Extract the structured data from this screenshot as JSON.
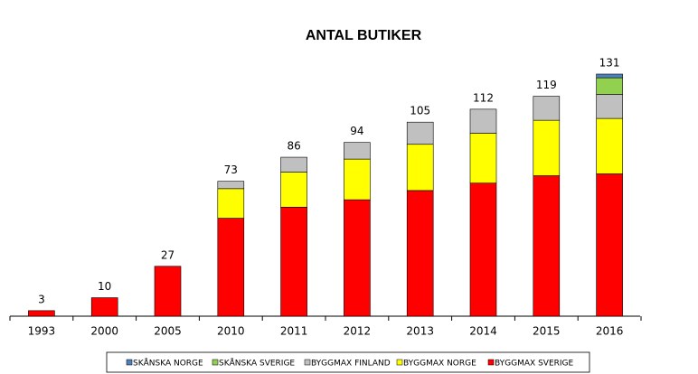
{
  "chart_data": {
    "type": "stacked_bar",
    "title": "ANTAL BUTIKER",
    "categories": [
      "1993",
      "2000",
      "2005",
      "2010",
      "2011",
      "2012",
      "2013",
      "2014",
      "2015",
      "2016"
    ],
    "totals": [
      3,
      10,
      27,
      73,
      86,
      94,
      105,
      112,
      119,
      131
    ],
    "series": [
      {
        "name": "SKÅNSKA NORGE",
        "color": "#4f81bd",
        "values": [
          null,
          null,
          null,
          null,
          null,
          null,
          null,
          null,
          null,
          2
        ]
      },
      {
        "name": "SKÅNSKA SVERIGE",
        "color": "#92d050",
        "values": [
          null,
          null,
          null,
          null,
          null,
          null,
          null,
          null,
          null,
          9
        ]
      },
      {
        "name": "BYGGMAX FINLAND",
        "color": "#c0c0c0",
        "values": [
          null,
          null,
          null,
          4,
          8,
          9,
          12,
          13,
          13,
          13
        ]
      },
      {
        "name": "BYGGMAX NORGE",
        "color": "#ffff00",
        "values": [
          null,
          null,
          null,
          16,
          19,
          22,
          25,
          27,
          30,
          30
        ]
      },
      {
        "name": "BYGGMAX SVERIGE",
        "color": "#ff0000",
        "values": [
          3,
          10,
          27,
          53,
          59,
          63,
          68,
          72,
          76,
          77
        ]
      }
    ]
  }
}
